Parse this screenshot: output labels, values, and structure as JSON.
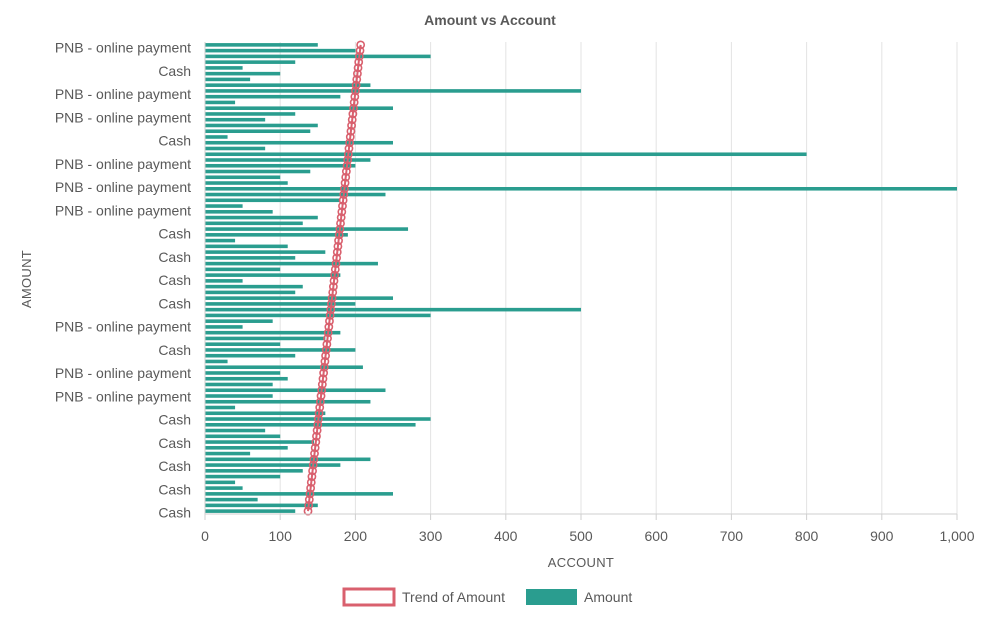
{
  "chart_data": {
    "type": "bar",
    "orientation": "horizontal",
    "title": "Amount vs Account",
    "xlabel": "ACCOUNT",
    "ylabel": "AMOUNT",
    "xlim": [
      0,
      1000
    ],
    "x_ticks": [
      0,
      100,
      200,
      300,
      400,
      500,
      600,
      700,
      800,
      900,
      1000
    ],
    "x_tick_labels": [
      "0",
      "100",
      "200",
      "300",
      "400",
      "500",
      "600",
      "700",
      "800",
      "900",
      "1,000"
    ],
    "grid": true,
    "legend_position": "bottom-center",
    "legend": [
      "Trend of Amount",
      "Amount"
    ],
    "visible_category_labels": [
      "PNB - online payment",
      "Cash",
      "PNB - online payment",
      "PNB - online payment",
      "Cash",
      "PNB - online payment",
      "PNB - online payment",
      "PNB - online payment",
      "Cash",
      "Cash",
      "Cash",
      "Cash",
      "PNB - online payment",
      "Cash",
      "PNB - online payment",
      "PNB - online payment",
      "Cash",
      "Cash",
      "Cash",
      "Cash",
      "Cash"
    ],
    "series": [
      {
        "name": "Amount",
        "type": "bar",
        "color": "#2a9d8f",
        "values": [
          150,
          200,
          300,
          120,
          50,
          100,
          60,
          220,
          500,
          180,
          40,
          250,
          120,
          80,
          150,
          140,
          30,
          250,
          80,
          800,
          220,
          200,
          140,
          100,
          110,
          1000,
          240,
          180,
          50,
          90,
          150,
          130,
          270,
          190,
          40,
          110,
          160,
          120,
          230,
          100,
          180,
          50,
          130,
          120,
          250,
          200,
          500,
          300,
          90,
          50,
          180,
          160,
          100,
          200,
          120,
          30,
          210,
          100,
          110,
          90,
          240,
          90,
          220,
          40,
          160,
          300,
          280,
          80,
          100,
          145,
          110,
          60,
          220,
          180,
          130,
          100,
          40,
          50,
          250,
          70,
          150,
          120
        ]
      },
      {
        "name": "Trend of Amount",
        "type": "line",
        "color": "#d9606e",
        "start": 207,
        "end": 137
      }
    ]
  }
}
